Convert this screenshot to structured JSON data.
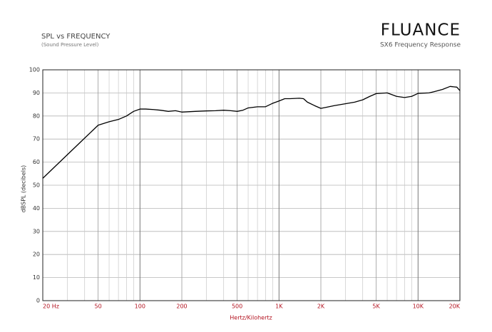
{
  "chart_data": {
    "type": "line",
    "title": "SPL vs FREQUENCY",
    "subtitle": "(Sound Pressure Level)",
    "brand": "FLUANCE",
    "chart_name": "SX6 Frequency Response",
    "y_label": "dBSPL (decibels)",
    "x_label": "Hertz/Kilohertz",
    "x_scale": "log",
    "grid": true,
    "x": [
      20,
      30,
      40,
      50,
      60,
      70,
      80,
      90,
      100,
      110,
      125,
      140,
      160,
      180,
      200,
      250,
      300,
      350,
      400,
      450,
      500,
      550,
      600,
      700,
      800,
      900,
      1000,
      1100,
      1200,
      1400,
      1500,
      1600,
      1800,
      2000,
      2200,
      2500,
      3000,
      3500,
      4000,
      4500,
      5000,
      6000,
      7000,
      8000,
      9000,
      10000,
      12000,
      13000,
      15000,
      17000,
      19000,
      20000
    ],
    "series": [
      {
        "color": "#000000",
        "values": [
          53,
          63.2,
          70.4,
          76,
          77.5,
          78.5,
          80,
          82,
          83,
          83,
          82.8,
          82.5,
          82,
          82.3,
          81.7,
          82,
          82.2,
          82.3,
          82.5,
          82.3,
          82,
          82.5,
          83.5,
          84,
          84,
          85.5,
          86.5,
          87.5,
          87.5,
          87.7,
          87.5,
          86,
          84.5,
          83.3,
          83.8,
          84.5,
          85.3,
          86,
          87,
          88.5,
          89.7,
          90,
          88.5,
          88,
          88.5,
          89.8,
          90,
          90.5,
          91.5,
          92.8,
          92.5,
          91
        ]
      }
    ],
    "xlim": [
      20,
      20000
    ],
    "xticks": [
      {
        "value": 20,
        "label": "20 Hz"
      },
      50,
      100,
      200,
      500,
      {
        "value": 1000,
        "label": "1K"
      },
      {
        "value": 2000,
        "label": "2K"
      },
      {
        "value": 5000,
        "label": "5K"
      },
      {
        "value": 10000,
        "label": "10K"
      },
      {
        "value": 20000,
        "label": "20K"
      }
    ],
    "xminorticks": [
      30,
      40,
      60,
      70,
      80,
      90,
      300,
      400,
      600,
      700,
      800,
      900,
      3000,
      4000,
      6000,
      7000,
      8000,
      9000
    ],
    "ylim": [
      0,
      100
    ],
    "yticks": [
      0,
      10,
      20,
      30,
      40,
      50,
      60,
      70,
      80,
      90,
      100
    ]
  }
}
